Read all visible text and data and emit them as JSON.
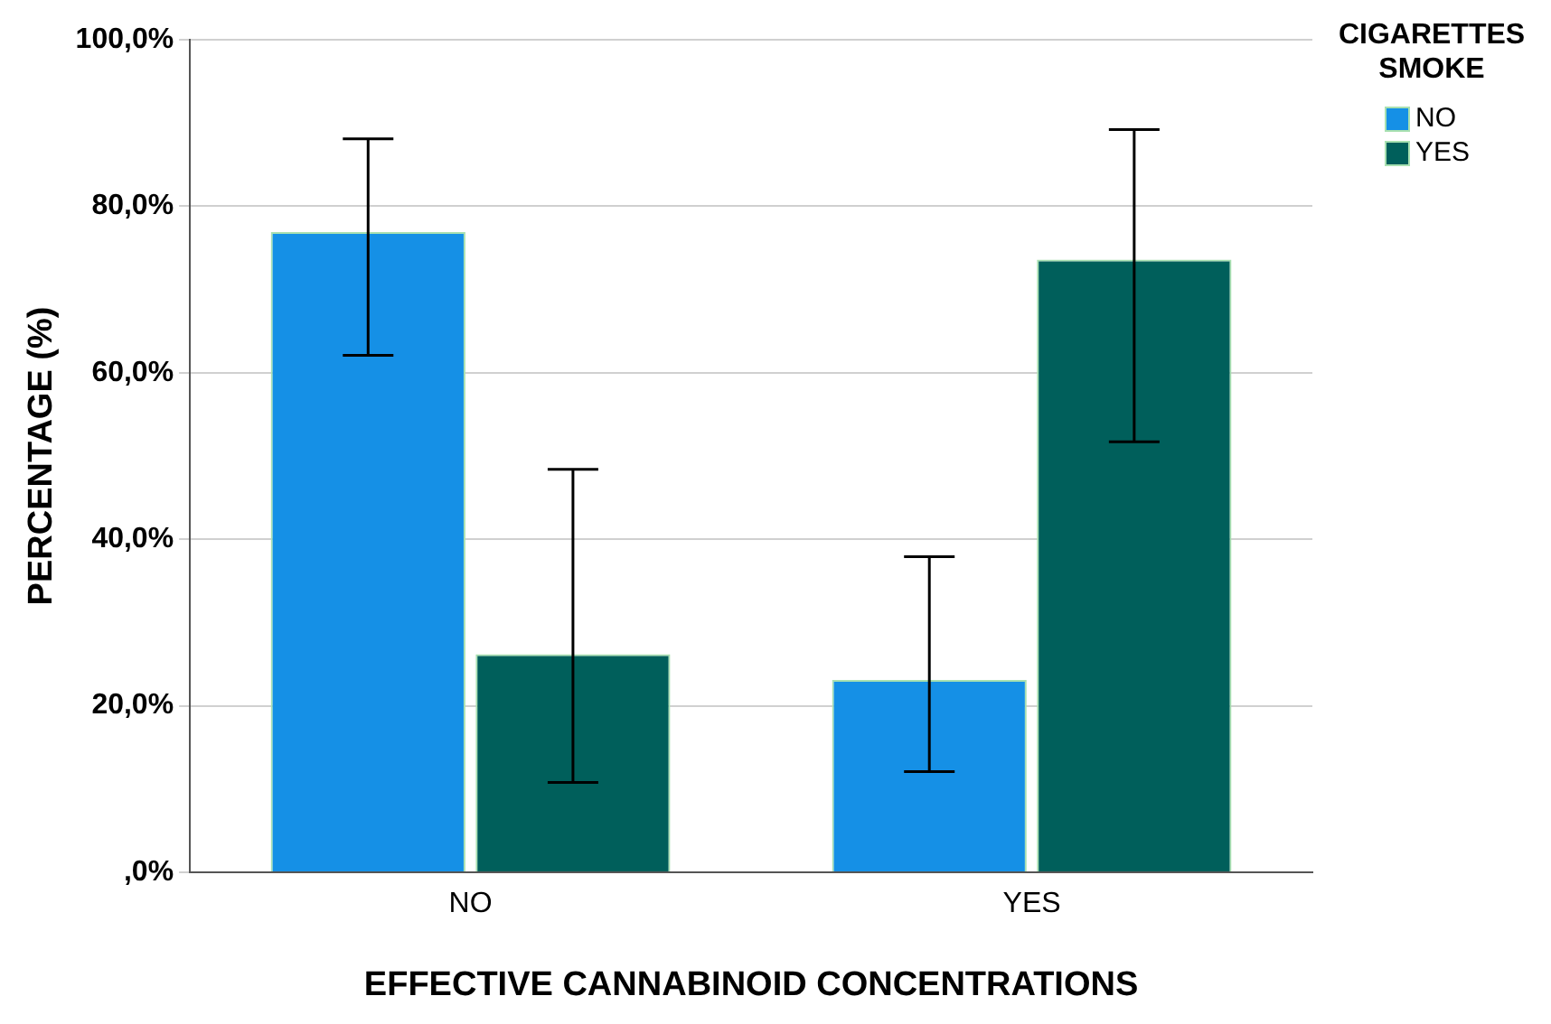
{
  "chart_data": {
    "type": "bar",
    "xlabel": "EFFECTIVE CANNABINOID CONCENTRATIONS",
    "ylabel": "PERCENTAGE (%)",
    "legend_title": "CIGARETTES SMOKE",
    "categories": [
      "NO",
      "YES"
    ],
    "series": [
      {
        "name": "NO",
        "color": "#1590e6",
        "values": [
          76.9,
          23.1
        ],
        "errors": [
          [
            62.1,
            88.1
          ],
          [
            12.1,
            37.9
          ]
        ]
      },
      {
        "name": "YES",
        "color": "#005f5b",
        "values": [
          26.2,
          73.6
        ],
        "errors": [
          [
            10.8,
            48.4
          ],
          [
            51.7,
            89.2
          ]
        ]
      }
    ],
    "ylim": [
      0,
      100
    ],
    "yticks": [
      {
        "value": 0,
        "label": ",0%"
      },
      {
        "value": 20,
        "label": "20,0%"
      },
      {
        "value": 40,
        "label": "40,0%"
      },
      {
        "value": 60,
        "label": "60,0%"
      },
      {
        "value": 80,
        "label": "80,0%"
      },
      {
        "value": 100,
        "label": "100,0%"
      }
    ],
    "grid": "y",
    "legend": "top right"
  }
}
